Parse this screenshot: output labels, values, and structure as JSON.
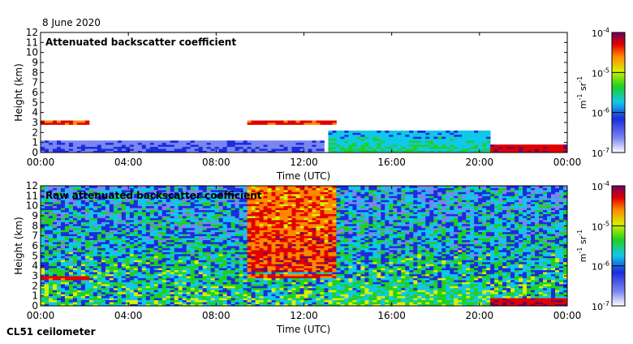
{
  "header": {
    "date": "8 June 2020"
  },
  "footer": {
    "instrument": "CL51 ceilometer"
  },
  "chart_data": [
    {
      "type": "heatmap",
      "title": "Attenuated backscatter coefficient",
      "xlabel": "Time (UTC)",
      "ylabel": "Height (km)",
      "xlim": [
        0,
        24
      ],
      "ylim": [
        0,
        12
      ],
      "x_ticks": [
        "00:00",
        "04:00",
        "08:00",
        "12:00",
        "16:00",
        "20:00",
        "00:00"
      ],
      "y_ticks": [
        "0",
        "1",
        "2",
        "3",
        "4",
        "5",
        "6",
        "7",
        "8",
        "9",
        "10",
        "11",
        "12"
      ],
      "colorbar": {
        "scale": "log",
        "range": [
          1e-07,
          0.0001
        ],
        "tick_labels": [
          "10",
          "10",
          "10",
          "10"
        ],
        "tick_exponents": [
          "-4",
          "-5",
          "-6",
          "-7"
        ],
        "label_base": "m",
        "label_base_exp": "-1",
        "label_unit": "sr",
        "label_unit_exp": "-1"
      },
      "features": [
        {
          "kind": "boundary_layer",
          "hours": [
            0,
            13
          ],
          "top_km": 1.2,
          "level": "low"
        },
        {
          "kind": "cloud_layer",
          "hours": [
            0,
            2.2
          ],
          "height_km": 3.0,
          "level": "high"
        },
        {
          "kind": "cloud_layer",
          "hours": [
            9.5,
            13.5
          ],
          "height_km": 3.0,
          "level": "high"
        },
        {
          "kind": "convective_layer",
          "hours": [
            13.2,
            20.5
          ],
          "top_km": 2.2,
          "level": "mid"
        },
        {
          "kind": "dense_low_cloud",
          "hours": [
            20.5,
            24
          ],
          "top_km": 0.8,
          "level": "very_high"
        }
      ]
    },
    {
      "type": "heatmap",
      "title": "Raw attenuated backscatter coefficient",
      "xlabel": "Time (UTC)",
      "ylabel": "Height (km)",
      "xlim": [
        0,
        24
      ],
      "ylim": [
        0,
        12
      ],
      "x_ticks": [
        "00:00",
        "04:00",
        "08:00",
        "12:00",
        "16:00",
        "20:00",
        "00:00"
      ],
      "y_ticks": [
        "0",
        "1",
        "2",
        "3",
        "4",
        "5",
        "6",
        "7",
        "8",
        "9",
        "10",
        "11",
        "12"
      ],
      "colorbar": {
        "scale": "log",
        "range": [
          1e-07,
          0.0001
        ],
        "tick_labels": [
          "10",
          "10",
          "10",
          "10"
        ],
        "tick_exponents": [
          "-4",
          "-5",
          "-6",
          "-7"
        ],
        "label_base": "m",
        "label_base_exp": "-1",
        "label_unit": "sr",
        "label_unit_exp": "-1"
      },
      "features": [
        {
          "kind": "noise_background",
          "hours": [
            0,
            24
          ],
          "level": "mid"
        },
        {
          "kind": "high_signal_region",
          "hours": [
            9.5,
            13.5
          ],
          "level": "high"
        },
        {
          "kind": "cloud_layer",
          "hours": [
            0,
            2.2
          ],
          "height_km": 2.8,
          "level": "high"
        },
        {
          "kind": "cloud_layer",
          "hours": [
            9.5,
            13.5
          ],
          "height_km": 3.0,
          "level": "high"
        },
        {
          "kind": "convective_layer",
          "hours": [
            13.2,
            20.5
          ],
          "top_km": 2.2,
          "level": "mid"
        },
        {
          "kind": "dense_low_cloud",
          "hours": [
            20.5,
            24
          ],
          "top_km": 0.8,
          "level": "very_high"
        }
      ]
    }
  ]
}
